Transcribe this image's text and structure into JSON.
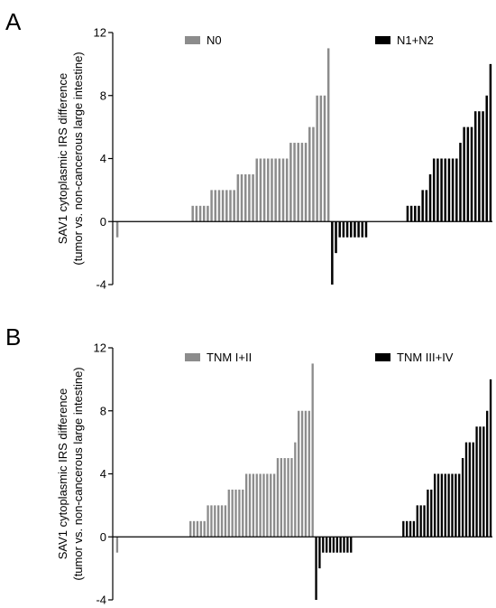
{
  "colors": {
    "gray": "#8c8c8c",
    "black": "#000000"
  },
  "chart_data": [
    {
      "type": "bar",
      "panel_label": "A",
      "ylabel": [
        "SAV1 cytoplasmic IRS difference",
        "(tumor vs. non-cancerous large intestine)"
      ],
      "ylim": [
        -4,
        12
      ],
      "yticks": [
        "-4",
        "0",
        "4",
        "8",
        "12"
      ],
      "grid": false,
      "legend_position": "top",
      "series": [
        {
          "name": "N0",
          "color": "#8c8c8c",
          "values": [
            -1,
            0,
            0,
            0,
            0,
            0,
            0,
            0,
            0,
            0,
            0,
            0,
            0,
            0,
            0,
            0,
            0,
            0,
            0,
            0,
            1,
            1,
            1,
            1,
            1,
            2,
            2,
            2,
            2,
            2,
            2,
            2,
            3,
            3,
            3,
            3,
            3,
            4,
            4,
            4,
            4,
            4,
            4,
            4,
            4,
            4,
            5,
            5,
            5,
            5,
            5,
            6,
            6,
            8,
            8,
            8,
            11
          ]
        },
        {
          "name": "N1+N2",
          "color": "#000000",
          "values": [
            -4,
            -2,
            -1,
            -1,
            -1,
            -1,
            -1,
            -1,
            -1,
            -1,
            0,
            0,
            0,
            0,
            0,
            0,
            0,
            0,
            0,
            0,
            1,
            1,
            1,
            1,
            2,
            2,
            3,
            4,
            4,
            4,
            4,
            4,
            4,
            4,
            5,
            6,
            6,
            6,
            7,
            7,
            7,
            8,
            10
          ]
        }
      ]
    },
    {
      "type": "bar",
      "panel_label": "B",
      "ylabel": [
        "SAV1 cytoplasmic IRS difference",
        "(tumor vs. non-cancerous large intestine)"
      ],
      "ylim": [
        -4,
        12
      ],
      "yticks": [
        "-4",
        "0",
        "4",
        "8",
        "12"
      ],
      "grid": false,
      "legend_position": "top",
      "series": [
        {
          "name": "TNM I+II",
          "color": "#8c8c8c",
          "values": [
            -1,
            0,
            0,
            0,
            0,
            0,
            0,
            0,
            0,
            0,
            0,
            0,
            0,
            0,
            0,
            0,
            0,
            0,
            0,
            0,
            0,
            1,
            1,
            1,
            1,
            1,
            2,
            2,
            2,
            2,
            2,
            2,
            3,
            3,
            3,
            3,
            3,
            4,
            4,
            4,
            4,
            4,
            4,
            4,
            4,
            4,
            5,
            5,
            5,
            5,
            5,
            6,
            8,
            8,
            8,
            8,
            11
          ]
        },
        {
          "name": "TNM III+IV",
          "color": "#000000",
          "values": [
            -4,
            -2,
            -1,
            -1,
            -1,
            -1,
            -1,
            -1,
            -1,
            -1,
            -1,
            0,
            0,
            0,
            0,
            0,
            0,
            0,
            0,
            0,
            0,
            0,
            0,
            0,
            0,
            1,
            1,
            1,
            1,
            2,
            2,
            2,
            3,
            3,
            4,
            4,
            4,
            4,
            4,
            4,
            4,
            4,
            5,
            6,
            6,
            6,
            7,
            7,
            7,
            8,
            10
          ]
        }
      ]
    }
  ]
}
